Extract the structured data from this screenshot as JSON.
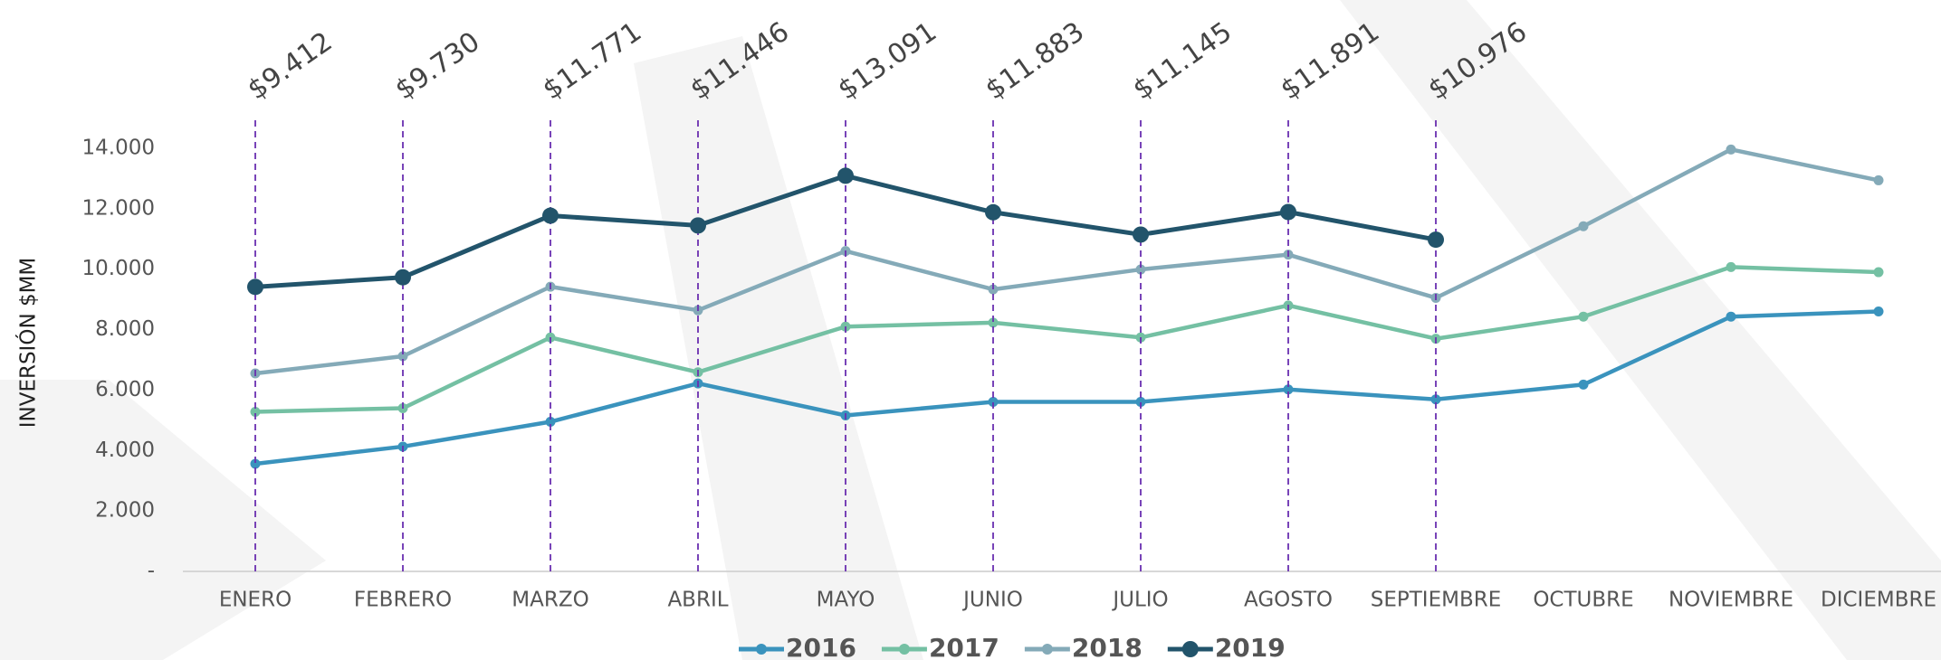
{
  "chart_data": {
    "type": "line",
    "y_axis_label": "INVERSIÓN $MM",
    "categories": [
      "ENERO",
      "FEBRERO",
      "MARZO",
      "ABRIL",
      "MAYO",
      "JUNIO",
      "JULIO",
      "AGOSTO",
      "SEPTIEMBRE",
      "OCTUBRE",
      "NOVIEMBRE",
      "DICIEMBRE"
    ],
    "series": [
      {
        "name": "2016",
        "color": "#3a93bd",
        "values": [
          3560,
          4130,
          4950,
          6220,
          5160,
          5610,
          5610,
          6020,
          5690,
          6180,
          8430,
          8600
        ]
      },
      {
        "name": "2017",
        "color": "#74c0a3",
        "values": [
          5280,
          5400,
          7740,
          6590,
          8100,
          8230,
          7740,
          8800,
          7700,
          8430,
          10070,
          9900
        ]
      },
      {
        "name": "2018",
        "color": "#84aab8",
        "values": [
          6550,
          7120,
          9420,
          8640,
          10600,
          9330,
          9990,
          10480,
          9050,
          11420,
          13960,
          12940
        ]
      },
      {
        "name": "2019",
        "color": "#22546b",
        "values": [
          9412,
          9730,
          11771,
          11446,
          13091,
          11883,
          11145,
          11891,
          10976,
          null,
          null,
          null
        ],
        "value_labels": [
          "$9.412",
          "$9.730",
          "$11.771",
          "$11.446",
          "$13.091",
          "$11.883",
          "$11.145",
          "$11.891",
          "$10.976",
          null,
          null,
          null
        ]
      }
    ],
    "ylim": [
      0,
      14000
    ],
    "yticks": [
      {
        "value": 0,
        "label": "-"
      },
      {
        "value": 2000,
        "label": "2.000"
      },
      {
        "value": 4000,
        "label": "4.000"
      },
      {
        "value": 6000,
        "label": "6.000"
      },
      {
        "value": 8000,
        "label": "8.000"
      },
      {
        "value": 10000,
        "label": "10.000"
      },
      {
        "value": 12000,
        "label": "12.000"
      },
      {
        "value": 14000,
        "label": "14.000"
      }
    ],
    "grid": false,
    "legend": "bottom"
  }
}
